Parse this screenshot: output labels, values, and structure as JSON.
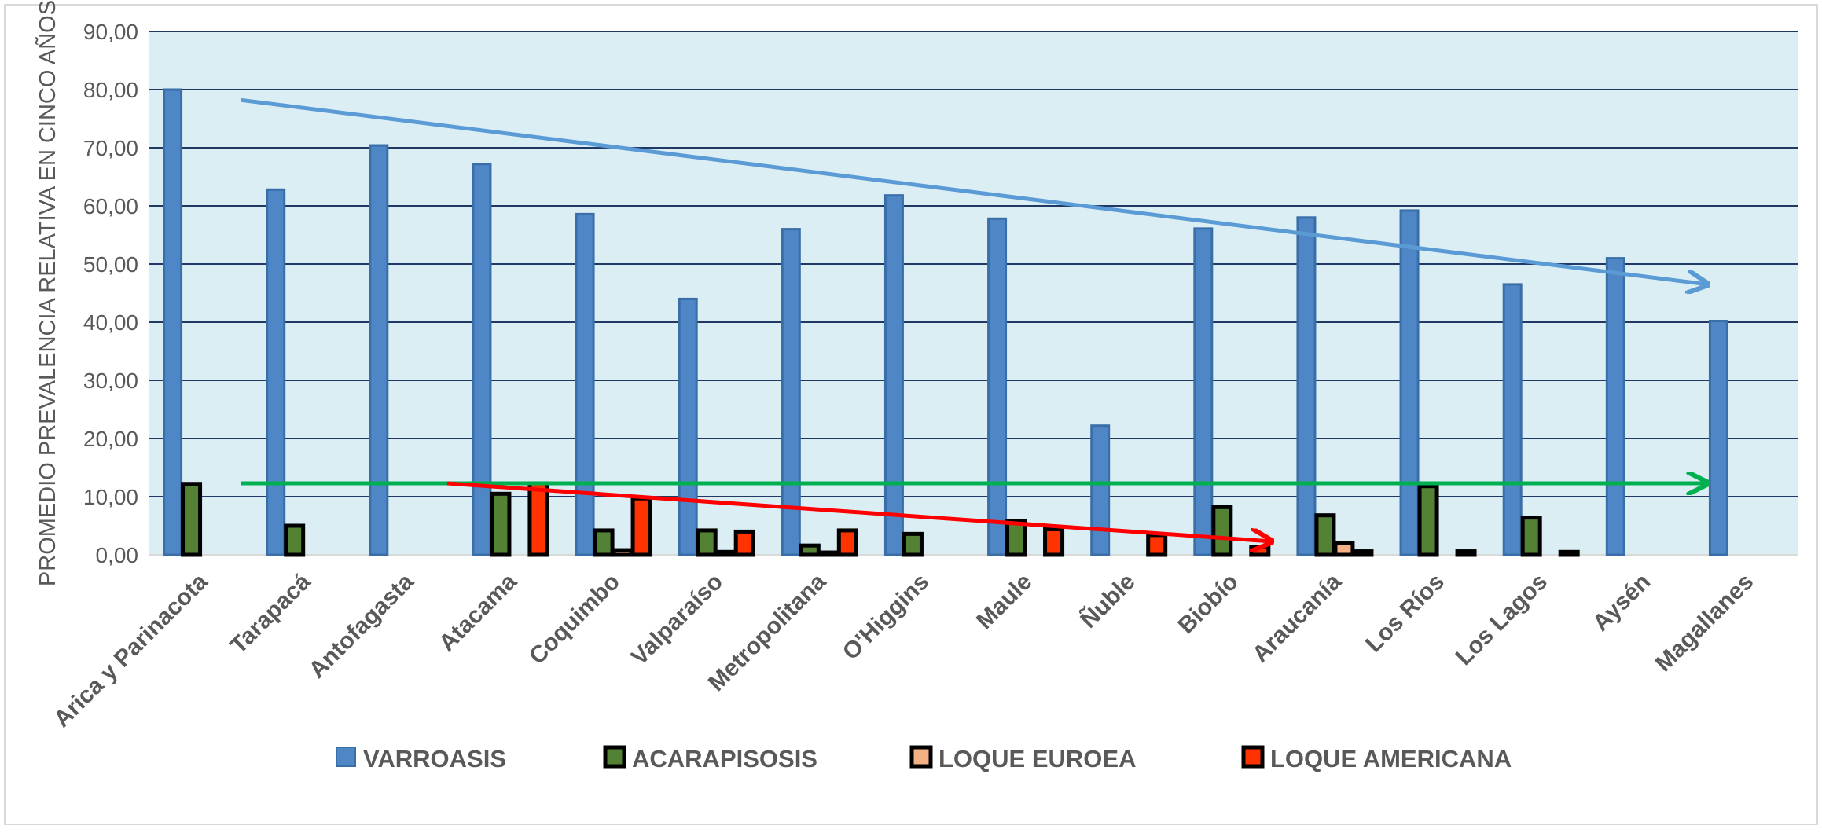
{
  "chart_data": {
    "type": "bar",
    "title": "",
    "ylabel": "PROMEDIO PREVALENCIA RELATIVA EN CINCO AÑOS",
    "xlabel": "",
    "ylim": [
      0,
      90
    ],
    "yticks": [
      "0,00",
      "10,00",
      "20,00",
      "30,00",
      "40,00",
      "50,00",
      "60,00",
      "70,00",
      "80,00",
      "90,00"
    ],
    "grid": true,
    "legend_position": "bottom",
    "categories": [
      "Arica y Parinacota",
      "Tarapacá",
      "Antofagasta",
      "Atacama",
      "Coquimbo",
      "Valparaíso",
      "Metropolitana",
      "O'Higgins",
      "Maule",
      "Ñuble",
      "Biobío",
      "Araucanía",
      "Los Ríos",
      "Los Lagos",
      "Aysén",
      "Magallanes"
    ],
    "series": [
      {
        "name": "VARROASIS",
        "color": "#4f86c6",
        "values": [
          80.0,
          62.8,
          70.4,
          67.2,
          58.6,
          44.0,
          56.0,
          61.8,
          57.8,
          22.2,
          56.1,
          58.0,
          59.2,
          46.5,
          51.0,
          40.2
        ]
      },
      {
        "name": "ACARAPISOSIS",
        "color": "#548235",
        "values": [
          12.2,
          5.0,
          0,
          10.5,
          4.2,
          4.2,
          1.6,
          3.6,
          5.8,
          0,
          8.2,
          6.8,
          11.8,
          6.4,
          0,
          0
        ]
      },
      {
        "name": "LOQUE EUROEA",
        "color": "#f4b183",
        "values": [
          0,
          0,
          0,
          0,
          0.8,
          0.5,
          0.4,
          0,
          0,
          0,
          0,
          2.0,
          0,
          0,
          0,
          0
        ]
      },
      {
        "name": "LOQUE AMERICANA",
        "color": "#ff3300",
        "values": [
          0,
          0,
          0,
          12.3,
          9.7,
          4.0,
          4.2,
          0,
          4.4,
          3.4,
          1.3,
          0.6,
          0.6,
          0.5,
          0,
          0
        ]
      }
    ],
    "trend_arrows": [
      {
        "series": "VARROASIS",
        "color": "#5b9bd5",
        "from": [
          "Tarapacá",
          78.2
        ],
        "to": [
          "Magallanes",
          46.5
        ]
      },
      {
        "series": "ACARAPISOSIS",
        "color": "#00b050",
        "from": [
          "Tarapacá",
          12.3
        ],
        "to": [
          "Magallanes",
          12.3
        ]
      },
      {
        "series": "LOQUE AMERICANA",
        "color": "#ff0000",
        "from": [
          "Atacama",
          12.3
        ],
        "to": [
          "Araucanía",
          2.3
        ]
      }
    ]
  }
}
